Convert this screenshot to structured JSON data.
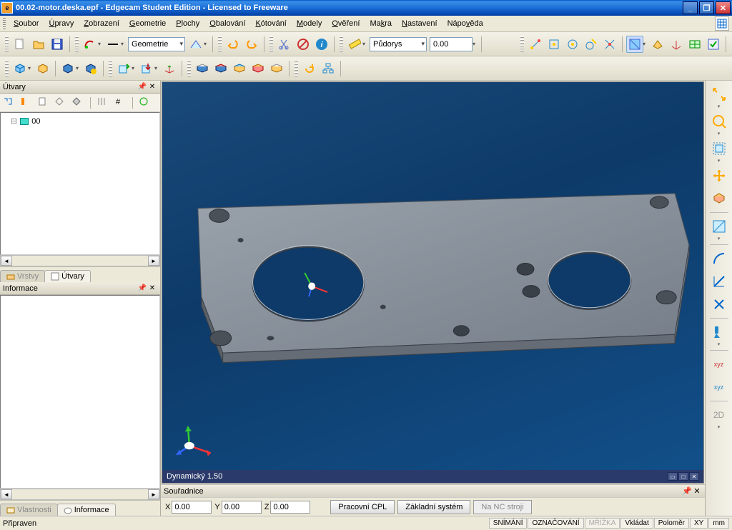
{
  "window": {
    "title": "00.02-motor.deska.epf - Edgecam Student Edition - Licensed to Freeware",
    "minimize": "_",
    "restore": "❐",
    "close": "✕"
  },
  "menu": {
    "items": [
      {
        "t": "Soubor",
        "u": 0
      },
      {
        "t": "Úpravy",
        "u": 0
      },
      {
        "t": "Zobrazení",
        "u": 0
      },
      {
        "t": "Geometrie",
        "u": 0
      },
      {
        "t": "Plochy",
        "u": 0
      },
      {
        "t": "Obalování",
        "u": 0
      },
      {
        "t": "Kótování",
        "u": 0
      },
      {
        "t": "Modely",
        "u": 0
      },
      {
        "t": "Ověření",
        "u": 0
      },
      {
        "t": "Makra",
        "u": 2
      },
      {
        "t": "Nastavení",
        "u": 0
      },
      {
        "t": "Nápověda",
        "u": 4
      }
    ]
  },
  "toolbar1": {
    "combo_mode": "Geometrie",
    "combo_view": "Půdorys",
    "value": "0.00"
  },
  "leftpanel": {
    "utvary_title": "Útvary",
    "tree_item": "00",
    "tab_vrstvy": "Vrstvy",
    "tab_utvary": "Útvary",
    "info_title": "Informace",
    "tab_vlastnosti": "Vlastnosti",
    "tab_informace": "Informace"
  },
  "viewport": {
    "status": "Dynamický 1.50"
  },
  "coords": {
    "title": "Souřadnice",
    "x_label": "X",
    "x_val": "0.00",
    "y_label": "Y",
    "y_val": "0.00",
    "z_label": "Z",
    "z_val": "0.00",
    "btn_prac": "Pracovní CPL",
    "btn_zakl": "Základní systém",
    "btn_nc": "Na NC stroji"
  },
  "status": {
    "ready": "Připraven",
    "cells": [
      "SNÍMÁNÍ",
      "OZNAČOVÁNÍ",
      "MŘÍŽKA",
      "Vkládat",
      "Poloměr",
      "XY",
      "mm"
    ]
  },
  "right": {
    "xyz1": "xyz",
    "xyz2": "xyz",
    "twod": "2D"
  },
  "colors": {
    "titlebar": "#1b6fd8",
    "viewport_bg": "#0d3a68",
    "panel_bg": "#ece9d8"
  }
}
